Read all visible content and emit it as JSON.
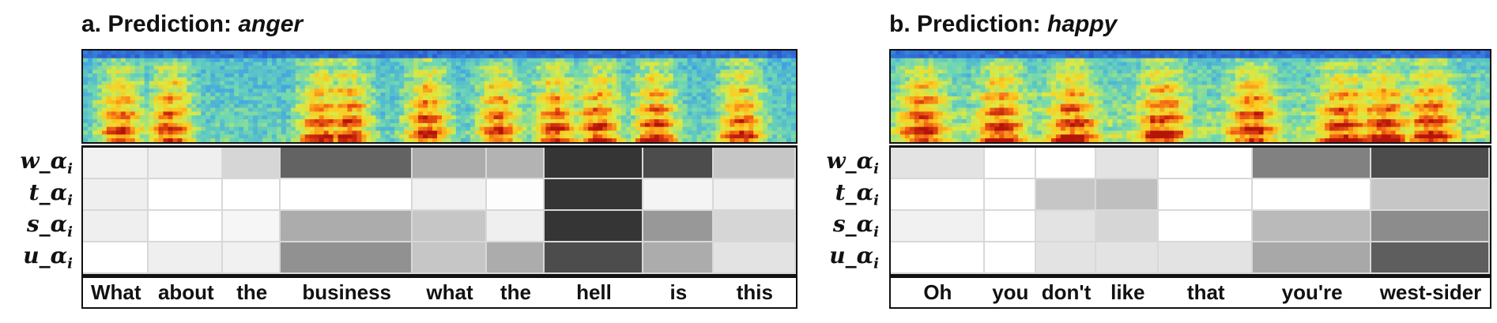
{
  "panels": [
    {
      "title_prefix": "a. Prediction: ",
      "prediction": "anger",
      "row_labels": [
        "w_α",
        "t_α",
        "s_α",
        "u_α"
      ],
      "row_label_subscript": "i",
      "words": [
        "What",
        "about",
        "the",
        "business",
        "what",
        "the",
        "hell",
        "is",
        "this"
      ],
      "word_spans": [
        1.6,
        1.8,
        1.4,
        3.2,
        1.8,
        1.4,
        2.4,
        1.7,
        2.0
      ],
      "attention_columns": [
        1,
        1,
        1,
        2,
        1,
        1,
        2,
        1,
        1
      ],
      "attention": [
        [
          0.06,
          0.07,
          0.18,
          0.68,
          0.36,
          0.33,
          0.88,
          0.78,
          0.25
        ],
        [
          0.07,
          0.0,
          0.0,
          0.0,
          0.06,
          0.01,
          0.88,
          0.05,
          0.07
        ],
        [
          0.07,
          0.0,
          0.04,
          0.36,
          0.25,
          0.07,
          0.88,
          0.45,
          0.18
        ],
        [
          0.0,
          0.07,
          0.06,
          0.48,
          0.25,
          0.36,
          0.78,
          0.36,
          0.12
        ]
      ]
    },
    {
      "title_prefix": "b. Prediction: ",
      "prediction": "happy",
      "row_labels": [
        "w_α",
        "t_α",
        "s_α",
        "u_α"
      ],
      "row_label_subscript": "i",
      "words": [
        "Oh",
        "you",
        "don't",
        "like",
        "that",
        "you're",
        "west-sider"
      ],
      "word_spans": [
        2.1,
        1.15,
        1.35,
        1.4,
        2.1,
        2.65,
        2.65
      ],
      "attention_columns": [
        1,
        1,
        1,
        1,
        1,
        1,
        1
      ],
      "attention": [
        [
          0.12,
          0.0,
          0.0,
          0.12,
          0.0,
          0.55,
          0.78
        ],
        [
          0.0,
          0.0,
          0.25,
          0.28,
          0.0,
          0.0,
          0.25
        ],
        [
          0.06,
          0.0,
          0.12,
          0.18,
          0.0,
          0.3,
          0.5
        ],
        [
          0.0,
          0.0,
          0.12,
          0.12,
          0.12,
          0.38,
          0.7
        ]
      ]
    }
  ]
}
